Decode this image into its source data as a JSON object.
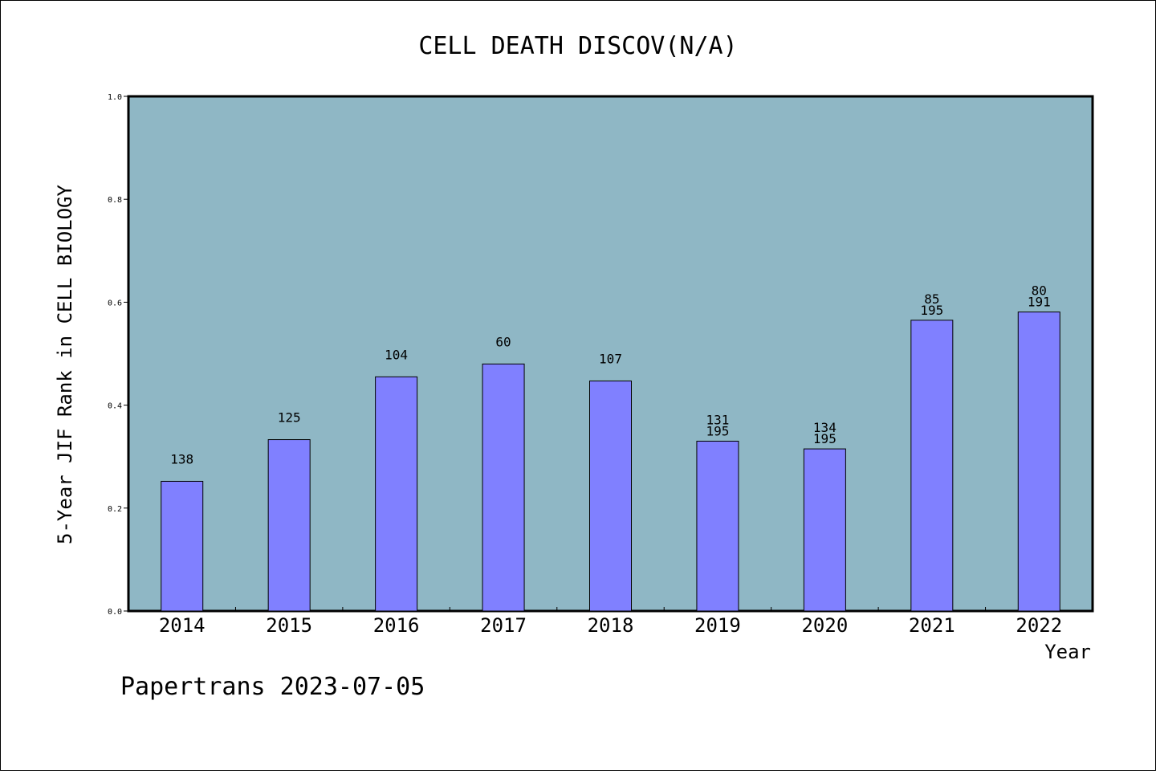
{
  "chart_data": {
    "type": "bar",
    "title": "CELL DEATH DISCOV(N/A)",
    "xlabel": "Year",
    "ylabel": "5-Year JIF Rank in CELL BIOLOGY",
    "ylim": [
      0.0,
      1.0
    ],
    "yticks": [
      "0.0",
      "0.2",
      "0.4",
      "0.6",
      "0.8",
      "1.0"
    ],
    "categories": [
      "2014",
      "2015",
      "2016",
      "2017",
      "2018",
      "2019",
      "2020",
      "2021",
      "2022"
    ],
    "values": [
      0.252,
      0.333,
      0.455,
      0.48,
      0.447,
      0.33,
      0.315,
      0.565,
      0.581
    ],
    "bar_labels": [
      [
        "138"
      ],
      [
        "125"
      ],
      [
        "104"
      ],
      [
        "60"
      ],
      [
        "107"
      ],
      [
        "131",
        "195"
      ],
      [
        "134",
        "195"
      ],
      [
        "85",
        "195"
      ],
      [
        "80",
        "191"
      ]
    ],
    "colors": {
      "plot_bg": "#8fb7c5",
      "bar": "#8080ff",
      "bar_edge": "#000000"
    },
    "grid": false
  },
  "footer": {
    "credit": "Papertrans 2023-07-05"
  }
}
